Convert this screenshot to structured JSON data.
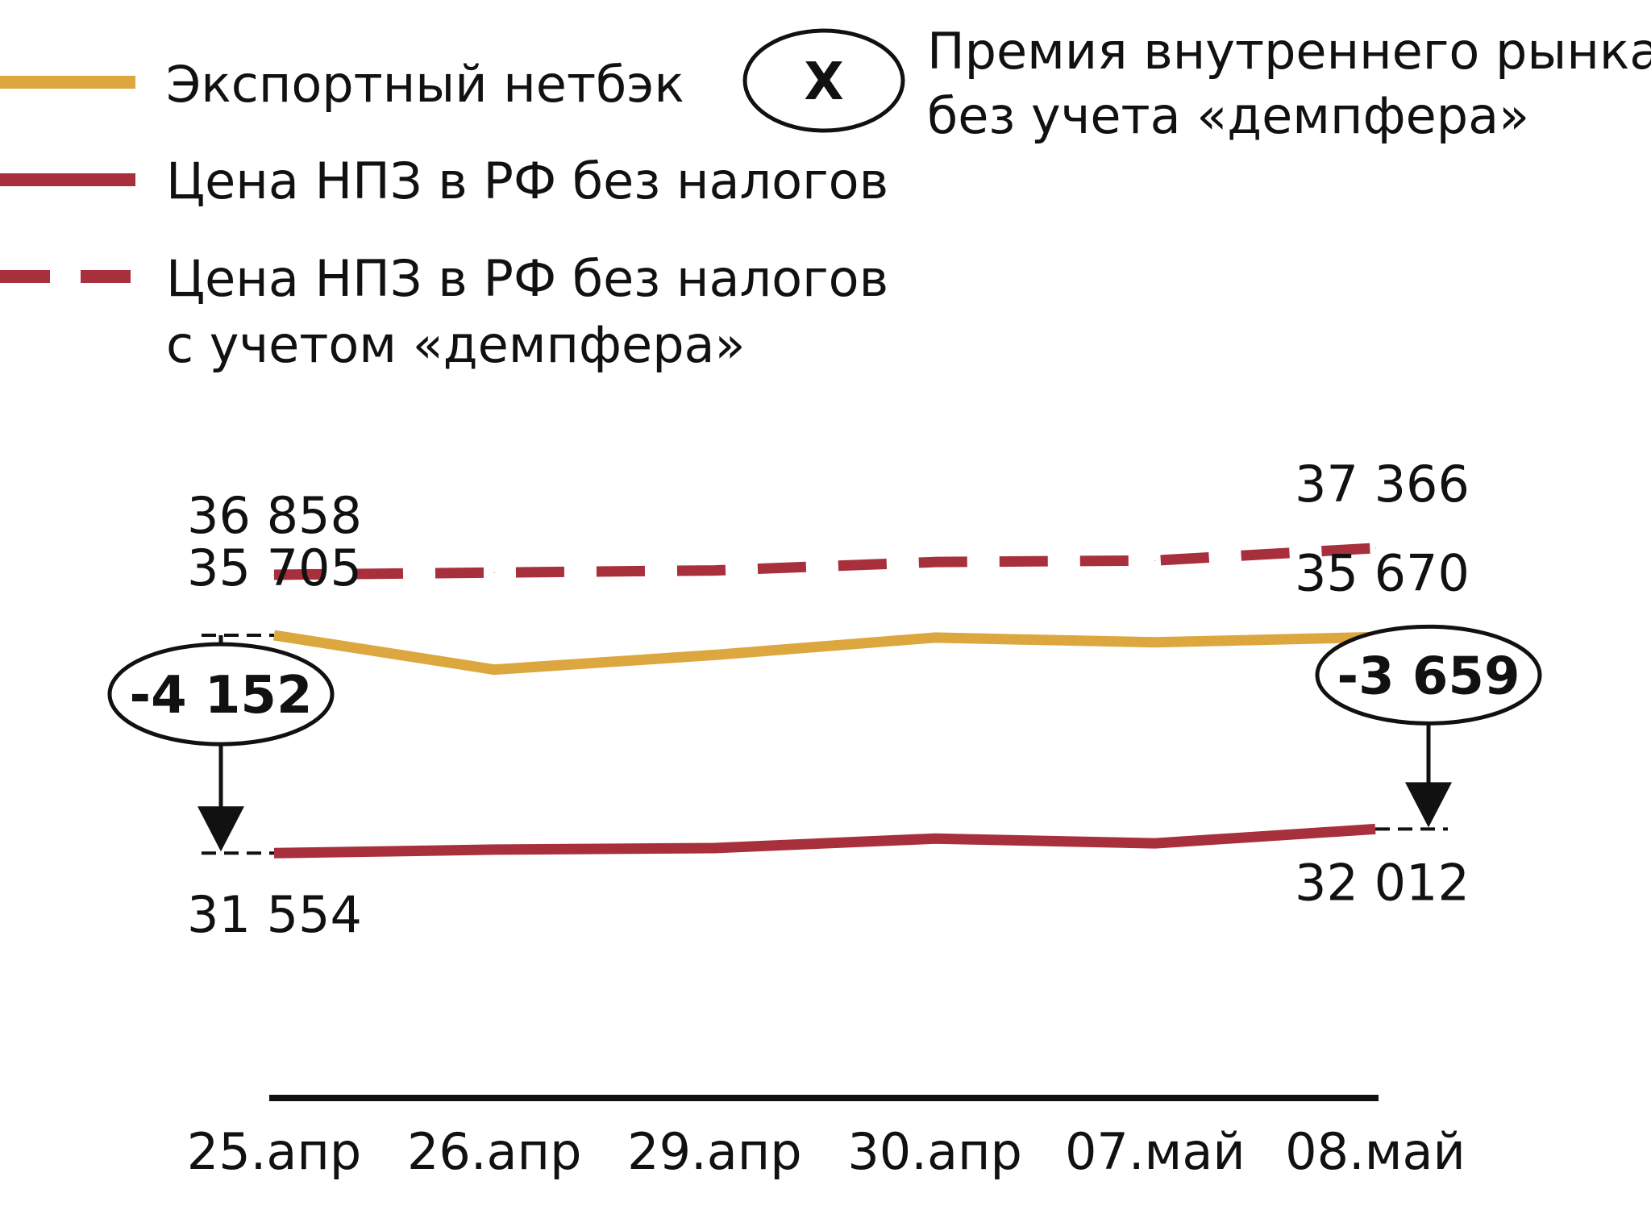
{
  "chart_data": {
    "type": "line",
    "categories": [
      "25.апр",
      "26.апр",
      "29.апр",
      "30.апр",
      "07.май",
      "08.май"
    ],
    "series": [
      {
        "name": "Экспортный нетбэк",
        "style": "solid",
        "color": "#DDA73F",
        "values": [
          35705,
          35050,
          35330,
          35660,
          35570,
          35670
        ]
      },
      {
        "name": "Цена НПЗ в РФ без налогов",
        "style": "solid",
        "color": "#A8303C",
        "values": [
          31554,
          31620,
          31650,
          31830,
          31740,
          32012
        ]
      },
      {
        "name": "Цена НПЗ в РФ без налогов с учетом «демпфера»",
        "name_lines": [
          "Цена НПЗ в РФ без налогов",
          "с учетом «демпфера»"
        ],
        "style": "dashed",
        "color": "#A8303C",
        "values": [
          36858,
          36900,
          36940,
          37100,
          37130,
          37366
        ]
      }
    ],
    "premium_legend": {
      "badge": "X",
      "lines": [
        "Премия внутреннего рынка",
        "без учета «демпфера»"
      ]
    },
    "labels": {
      "start": {
        "dashed": "36 858",
        "netback": "35 705",
        "refinery": "31 554",
        "premium": "-4 152"
      },
      "end": {
        "dashed": "37 366",
        "netback": "35 670",
        "refinery": "32 012",
        "premium": "-3 659"
      }
    },
    "ylim": [
      30000,
      40000
    ],
    "grid": false,
    "legend_position": "top-left"
  }
}
